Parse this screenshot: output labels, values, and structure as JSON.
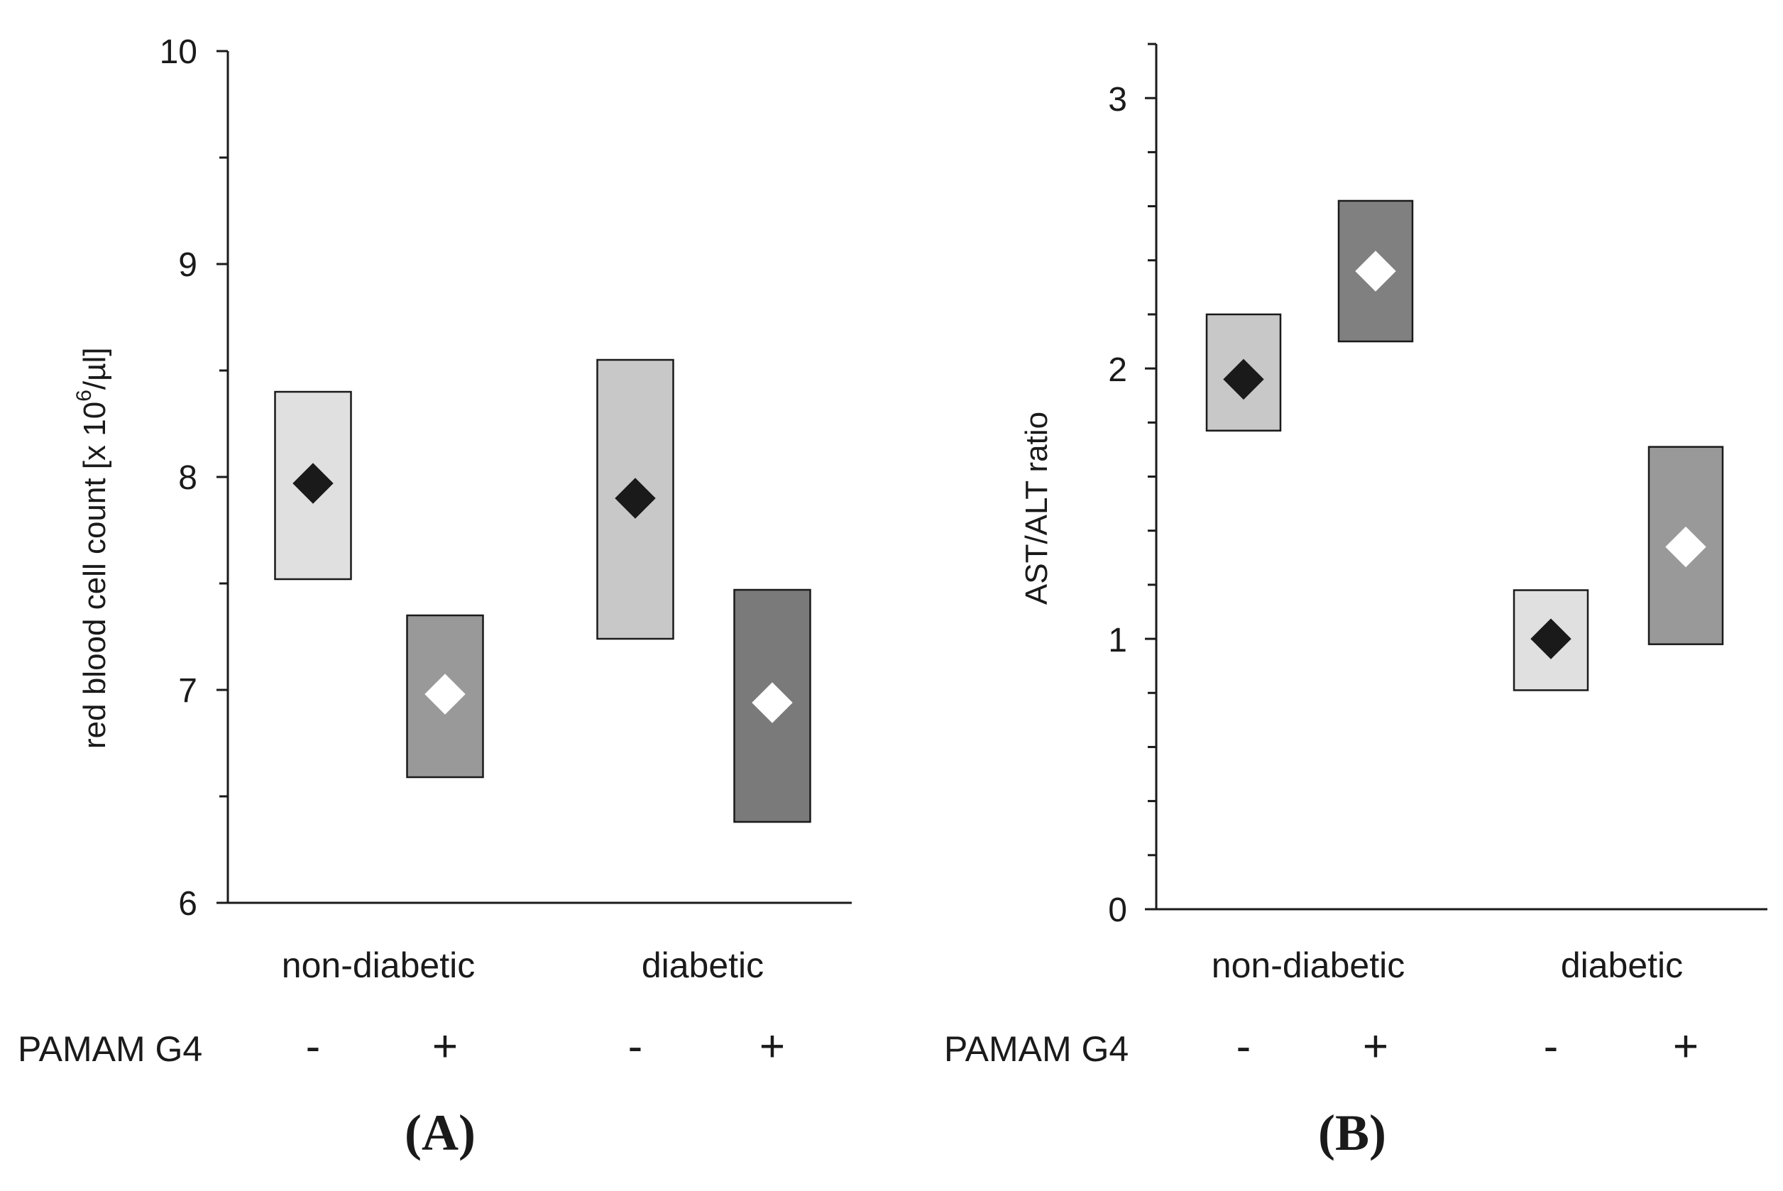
{
  "chart_data": [
    {
      "type": "box",
      "panel_label": "(A)",
      "ylabel": "red blood cell count [x 10",
      "ylabel_superscript": "6",
      "ylabel_suffix": "/µl]",
      "ylim": [
        6,
        10
      ],
      "y_ticks": [
        "6",
        "7",
        "8",
        "9",
        "10"
      ],
      "group_labels": [
        "non-diabetic",
        "diabetic"
      ],
      "factor_label": "PAMAM G4",
      "factor_values": [
        "-",
        "+",
        "-",
        "+"
      ],
      "series": [
        {
          "group": "non-diabetic",
          "pamam": "-",
          "mean": 7.97,
          "low": 7.52,
          "high": 8.4,
          "box_color": "#e0e0e0",
          "marker_color": "#1a1a1a"
        },
        {
          "group": "non-diabetic",
          "pamam": "+",
          "mean": 6.98,
          "low": 6.59,
          "high": 7.35,
          "box_color": "#999999",
          "marker_color": "#ffffff"
        },
        {
          "group": "diabetic",
          "pamam": "-",
          "mean": 7.9,
          "low": 7.24,
          "high": 8.55,
          "box_color": "#c8c8c8",
          "marker_color": "#1a1a1a"
        },
        {
          "group": "diabetic",
          "pamam": "+",
          "mean": 6.94,
          "low": 6.38,
          "high": 7.47,
          "box_color": "#7a7a7a",
          "marker_color": "#ffffff"
        }
      ]
    },
    {
      "type": "box",
      "panel_label": "(B)",
      "ylabel": "AST/ALT ratio",
      "ylim": [
        0,
        3.2
      ],
      "y_ticks": [
        "0",
        "1",
        "2",
        "3"
      ],
      "group_labels": [
        "non-diabetic",
        "diabetic"
      ],
      "factor_label": "PAMAM G4",
      "factor_values": [
        "-",
        "+",
        "-",
        "+"
      ],
      "series": [
        {
          "group": "non-diabetic",
          "pamam": "-",
          "mean": 1.96,
          "low": 1.77,
          "high": 2.2,
          "box_color": "#c8c8c8",
          "marker_color": "#1a1a1a"
        },
        {
          "group": "non-diabetic",
          "pamam": "+",
          "mean": 2.36,
          "low": 2.1,
          "high": 2.62,
          "box_color": "#808080",
          "marker_color": "#ffffff"
        },
        {
          "group": "diabetic",
          "pamam": "-",
          "mean": 1.0,
          "low": 0.81,
          "high": 1.18,
          "box_color": "#e0e0e0",
          "marker_color": "#1a1a1a"
        },
        {
          "group": "diabetic",
          "pamam": "+",
          "mean": 1.34,
          "low": 0.98,
          "high": 1.71,
          "box_color": "#999999",
          "marker_color": "#ffffff"
        }
      ]
    }
  ]
}
